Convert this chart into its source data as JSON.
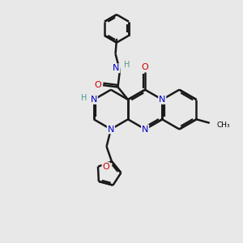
{
  "bg_color": "#e8e8e8",
  "CN": "#0000cc",
  "CO": "#cc0000",
  "CH": "#4a9a8a",
  "CK": "#000000",
  "bond_color": "#1a1a1a",
  "bond_width": 1.8,
  "figsize": [
    3.0,
    3.0
  ],
  "dpi": 100,
  "xlim": [
    0,
    10
  ],
  "ylim": [
    0,
    10
  ]
}
